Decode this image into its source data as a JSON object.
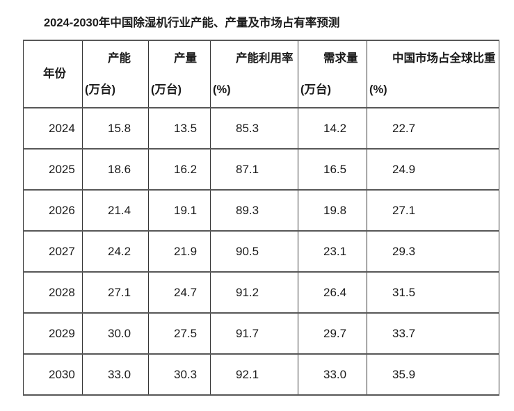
{
  "page": {
    "title": "2024-2030年中国除湿机行业产能、产量及市场占有率预测"
  },
  "table": {
    "columns": [
      {
        "title": "年份",
        "unit": ""
      },
      {
        "title": "产能",
        "unit": "(万台)"
      },
      {
        "title": "产量",
        "unit": "(万台)"
      },
      {
        "title": "产能利用率",
        "unit": "(%)"
      },
      {
        "title": "需求量",
        "unit": "(万台)"
      },
      {
        "title": "中国市场占全球比重",
        "unit": "(%)"
      }
    ],
    "rows": [
      [
        "2024",
        "15.8",
        "13.5",
        "85.3",
        "14.2",
        "22.7"
      ],
      [
        "2025",
        "18.6",
        "16.2",
        "87.1",
        "16.5",
        "24.9"
      ],
      [
        "2026",
        "21.4",
        "19.1",
        "89.3",
        "19.8",
        "27.1"
      ],
      [
        "2027",
        "24.2",
        "21.9",
        "90.5",
        "23.1",
        "29.3"
      ],
      [
        "2028",
        "27.1",
        "24.7",
        "91.2",
        "26.4",
        "31.5"
      ],
      [
        "2029",
        "30.0",
        "27.5",
        "91.7",
        "29.7",
        "33.7"
      ],
      [
        "2030",
        "33.0",
        "30.3",
        "92.1",
        "33.0",
        "35.9"
      ]
    ]
  },
  "chart_data": {
    "type": "table",
    "title": "2024-2030年中国除湿机行业产能、产量及市场占有率预测",
    "categories": [
      "2024",
      "2025",
      "2026",
      "2027",
      "2028",
      "2029",
      "2030"
    ],
    "category_label": "年份",
    "series": [
      {
        "name": "产能 (万台)",
        "values": [
          15.8,
          18.6,
          21.4,
          24.2,
          27.1,
          30.0,
          33.0
        ]
      },
      {
        "name": "产量 (万台)",
        "values": [
          13.5,
          16.2,
          19.1,
          21.9,
          24.7,
          27.5,
          30.3
        ]
      },
      {
        "name": "产能利用率 (%)",
        "values": [
          85.3,
          87.1,
          89.3,
          90.5,
          91.2,
          91.7,
          92.1
        ]
      },
      {
        "name": "需求量 (万台)",
        "values": [
          14.2,
          16.5,
          19.8,
          23.1,
          26.4,
          29.7,
          33.0
        ]
      },
      {
        "name": "中国市场占全球比重 (%)",
        "values": [
          22.7,
          24.9,
          27.1,
          29.3,
          31.5,
          33.7,
          35.9
        ]
      }
    ]
  }
}
